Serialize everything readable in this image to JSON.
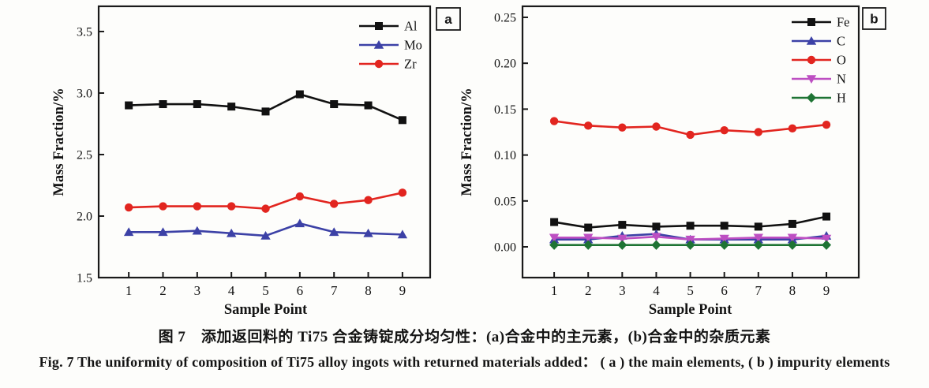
{
  "figure": {
    "caption_zh": "图 7　添加返回料的 Ti75 合金铸锭成分均匀性：(a)合金中的主元素，(b)合金中的杂质元素",
    "caption_en": "Fig. 7   The uniformity of composition of Ti75 alloy ingots with returned materials added： ( a ) the main elements, ( b ) impurity elements"
  },
  "colors": {
    "frame": "#1a1a1a",
    "text": "#141414",
    "black_series": "#111111",
    "blue_series": "#3c41a6",
    "red_series": "#e2251f",
    "magenta_series": "#bd4fc2",
    "green_series": "#1e7434"
  },
  "chart_data": [
    {
      "type": "line",
      "panel_label": "a",
      "title": "",
      "xlabel": "Sample Point",
      "ylabel": "Mass Fraction/%",
      "x": [
        1,
        2,
        3,
        4,
        5,
        6,
        7,
        8,
        9
      ],
      "xtick_labels": [
        "1",
        "2",
        "3",
        "4",
        "5",
        "6",
        "7",
        "8",
        "9"
      ],
      "xlim": [
        0.12,
        9.81
      ],
      "ylim": [
        1.5,
        3.705
      ],
      "yticks": [
        1.5,
        2.0,
        2.5,
        3.0,
        3.5
      ],
      "ytick_labels": [
        "1.5",
        "2.0",
        "2.5",
        "3.0",
        "3.5"
      ],
      "grid": false,
      "legend_position": "top-right-inside",
      "series": [
        {
          "name": "Al",
          "marker": "square",
          "color": "#111111",
          "values": [
            2.9,
            2.91,
            2.91,
            2.89,
            2.85,
            2.99,
            2.91,
            2.9,
            2.78
          ]
        },
        {
          "name": "Mo",
          "marker": "triangle-up",
          "color": "#3c41a6",
          "values": [
            1.87,
            1.87,
            1.88,
            1.86,
            1.84,
            1.94,
            1.87,
            1.86,
            1.85
          ]
        },
        {
          "name": "Zr",
          "marker": "circle",
          "color": "#e2251f",
          "values": [
            2.07,
            2.08,
            2.08,
            2.08,
            2.06,
            2.16,
            2.1,
            2.13,
            2.19
          ]
        }
      ]
    },
    {
      "type": "line",
      "panel_label": "b",
      "title": "",
      "xlabel": "Sample Point",
      "ylabel": "Mass Fraction/%",
      "x": [
        1,
        2,
        3,
        4,
        5,
        6,
        7,
        8,
        9
      ],
      "xtick_labels": [
        "1",
        "2",
        "3",
        "4",
        "5",
        "6",
        "7",
        "8",
        "9"
      ],
      "xlim": [
        0.07,
        9.95
      ],
      "ylim": [
        -0.0335,
        0.262
      ],
      "yticks": [
        0.0,
        0.05,
        0.1,
        0.15,
        0.2,
        0.25
      ],
      "ytick_labels": [
        "0.00",
        "0.05",
        "0.10",
        "0.15",
        "0.20",
        "0.25"
      ],
      "grid": false,
      "legend_position": "top-right-inside",
      "series": [
        {
          "name": "Fe",
          "marker": "square",
          "color": "#111111",
          "values": [
            0.027,
            0.021,
            0.024,
            0.022,
            0.023,
            0.023,
            0.022,
            0.025,
            0.033
          ]
        },
        {
          "name": "C",
          "marker": "triangle-up",
          "color": "#3c41a6",
          "values": [
            0.008,
            0.008,
            0.012,
            0.014,
            0.008,
            0.008,
            0.008,
            0.008,
            0.012
          ]
        },
        {
          "name": "O",
          "marker": "circle",
          "color": "#e2251f",
          "values": [
            0.137,
            0.132,
            0.13,
            0.131,
            0.122,
            0.127,
            0.125,
            0.129,
            0.133
          ]
        },
        {
          "name": "N",
          "marker": "triangle-down",
          "color": "#bd4fc2",
          "values": [
            0.01,
            0.01,
            0.009,
            0.011,
            0.008,
            0.009,
            0.01,
            0.01,
            0.009
          ]
        },
        {
          "name": "H",
          "marker": "diamond",
          "color": "#1e7434",
          "values": [
            0.002,
            0.002,
            0.002,
            0.002,
            0.002,
            0.002,
            0.002,
            0.002,
            0.002
          ]
        }
      ]
    }
  ]
}
